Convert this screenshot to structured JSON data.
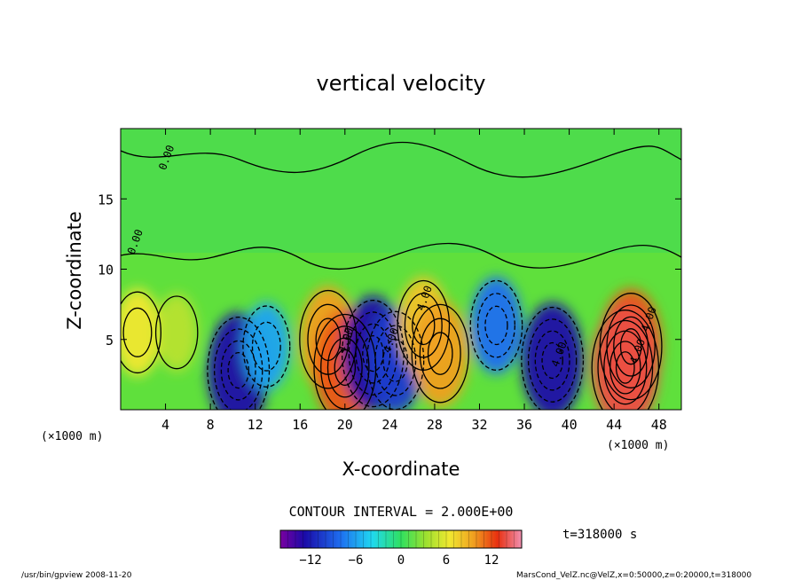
{
  "chart_data": {
    "type": "heatmap",
    "title": "vertical velocity",
    "xlabel": "X-coordinate",
    "ylabel": "Z-coordinate",
    "x_unit": "(×1000 m)",
    "x_unit_right": "(×1000 m)",
    "xlim": [
      0,
      50
    ],
    "ylim": [
      0,
      20
    ],
    "xticks": [
      4,
      8,
      12,
      16,
      20,
      24,
      28,
      32,
      36,
      40,
      44,
      48
    ],
    "yticks": [
      5,
      10,
      15
    ],
    "contour_interval_text": "CONTOUR INTERVAL = 2.000E+00",
    "contour_labels": [
      "0.00",
      "0.00",
      "4.00",
      "4.00",
      "4.00",
      "4.00",
      "4.00",
      "4.00"
    ],
    "time_text": "t=318000 s",
    "colorbar": {
      "range": [
        -16,
        16
      ],
      "ticks": [
        "−12",
        "−6",
        "0",
        "6",
        "12"
      ],
      "tick_values": [
        -12,
        -6,
        0,
        6,
        12
      ]
    },
    "cells": [
      {
        "x": 1.5,
        "z": 5.5,
        "w": 6
      },
      {
        "x": 5,
        "z": 5.5,
        "w": 4
      },
      {
        "x": 10.5,
        "z": 2.8,
        "w": -12
      },
      {
        "x": 13,
        "z": 4.5,
        "w": -6
      },
      {
        "x": 18.5,
        "z": 5,
        "w": 10
      },
      {
        "x": 20,
        "z": 3,
        "w": 12
      },
      {
        "x": 22.5,
        "z": 4,
        "w": -12
      },
      {
        "x": 24.5,
        "z": 3.5,
        "w": -10
      },
      {
        "x": 27,
        "z": 6,
        "w": 8
      },
      {
        "x": 28.5,
        "z": 4,
        "w": 10
      },
      {
        "x": 33.5,
        "z": 6,
        "w": -8
      },
      {
        "x": 38.5,
        "z": 3.5,
        "w": -12
      },
      {
        "x": 45.5,
        "z": 4.5,
        "w": 12
      },
      {
        "x": 45,
        "z": 3,
        "w": 14
      }
    ]
  },
  "footer": {
    "left": "/usr/bin/gpview  2008-11-20",
    "right": "MarsCond_VelZ.nc@VelZ,x=0:50000,z=0:20000,t=318000"
  }
}
